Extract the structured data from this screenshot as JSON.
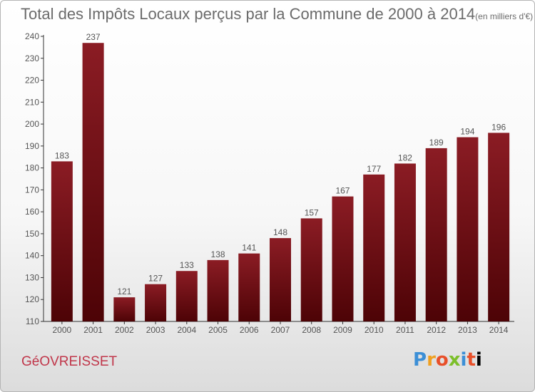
{
  "header": {
    "title": "Total des Impôts Locaux perçus par la Commune de 2000 à 2014",
    "unit": "(en milliers d'€)"
  },
  "footer": {
    "commune": "GéOVREISSET",
    "logo_letters": [
      "P",
      "r",
      "o",
      "x",
      "i",
      "t",
      "i"
    ]
  },
  "chart_data": {
    "type": "bar",
    "title": "Total des Impôts Locaux perçus par la Commune de 2000 à 2014",
    "subtitle": "(en milliers d'€)",
    "xlabel": "",
    "ylabel": "",
    "categories": [
      "2000",
      "2001",
      "2002",
      "2003",
      "2004",
      "2005",
      "2006",
      "2007",
      "2008",
      "2009",
      "2010",
      "2011",
      "2012",
      "2013",
      "2014"
    ],
    "values": [
      183,
      237,
      121,
      127,
      133,
      138,
      141,
      148,
      157,
      167,
      177,
      182,
      189,
      194,
      196
    ],
    "ylim": [
      110,
      240
    ],
    "yticks": [
      110,
      120,
      130,
      140,
      150,
      160,
      170,
      180,
      190,
      200,
      210,
      220,
      230,
      240
    ],
    "grid": false,
    "legend": "none",
    "bar_color": "#8b1c24",
    "bar_color_dark": "#4d0306",
    "text_color": "#555555"
  }
}
